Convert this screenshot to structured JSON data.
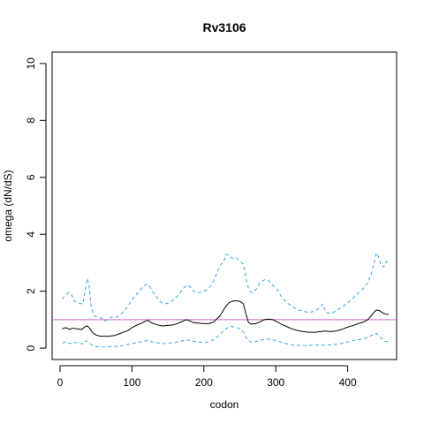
{
  "chart_data": {
    "type": "line",
    "title": "Rv3106",
    "xlabel": "codon",
    "ylabel": "omega (dN/dS)",
    "xlim": [
      -11,
      468
    ],
    "ylim": [
      -0.4,
      10.4
    ],
    "x_ticks": [
      0,
      100,
      200,
      300,
      400
    ],
    "y_ticks": [
      0,
      2,
      4,
      6,
      8,
      10
    ],
    "x_tick_labels": [
      "0",
      "100",
      "200",
      "300",
      "400"
    ],
    "y_tick_labels": [
      "0",
      "2",
      "4",
      "6",
      "8",
      "10"
    ],
    "reference_line": {
      "y": 1,
      "color": "#cc66cc"
    },
    "grid": false,
    "legend": "none",
    "series": [
      {
        "style": "solid",
        "color": "#000000",
        "points": [
          [
            3,
            0.68
          ],
          [
            8,
            0.72
          ],
          [
            13,
            0.66
          ],
          [
            18,
            0.7
          ],
          [
            24,
            0.68
          ],
          [
            30,
            0.65
          ],
          [
            35,
            0.76
          ],
          [
            38,
            0.78
          ],
          [
            41,
            0.7
          ],
          [
            45,
            0.55
          ],
          [
            50,
            0.46
          ],
          [
            56,
            0.42
          ],
          [
            62,
            0.42
          ],
          [
            68,
            0.42
          ],
          [
            75,
            0.44
          ],
          [
            82,
            0.5
          ],
          [
            88,
            0.56
          ],
          [
            95,
            0.62
          ],
          [
            100,
            0.72
          ],
          [
            106,
            0.8
          ],
          [
            112,
            0.86
          ],
          [
            118,
            0.94
          ],
          [
            122,
            0.98
          ],
          [
            128,
            0.88
          ],
          [
            135,
            0.82
          ],
          [
            142,
            0.78
          ],
          [
            150,
            0.8
          ],
          [
            158,
            0.82
          ],
          [
            165,
            0.88
          ],
          [
            170,
            0.94
          ],
          [
            175,
            1.0
          ],
          [
            180,
            0.96
          ],
          [
            185,
            0.9
          ],
          [
            192,
            0.88
          ],
          [
            200,
            0.86
          ],
          [
            207,
            0.86
          ],
          [
            212,
            0.9
          ],
          [
            217,
            1.0
          ],
          [
            222,
            1.12
          ],
          [
            226,
            1.28
          ],
          [
            230,
            1.45
          ],
          [
            235,
            1.6
          ],
          [
            241,
            1.66
          ],
          [
            247,
            1.66
          ],
          [
            252,
            1.62
          ],
          [
            255,
            1.55
          ],
          [
            258,
            1.25
          ],
          [
            262,
            0.9
          ],
          [
            266,
            0.84
          ],
          [
            272,
            0.86
          ],
          [
            278,
            0.92
          ],
          [
            284,
            1.0
          ],
          [
            290,
            1.02
          ],
          [
            296,
            1.0
          ],
          [
            302,
            0.92
          ],
          [
            308,
            0.84
          ],
          [
            315,
            0.76
          ],
          [
            322,
            0.68
          ],
          [
            330,
            0.62
          ],
          [
            338,
            0.58
          ],
          [
            346,
            0.56
          ],
          [
            355,
            0.56
          ],
          [
            362,
            0.58
          ],
          [
            368,
            0.6
          ],
          [
            376,
            0.58
          ],
          [
            384,
            0.6
          ],
          [
            392,
            0.66
          ],
          [
            400,
            0.74
          ],
          [
            408,
            0.8
          ],
          [
            415,
            0.86
          ],
          [
            422,
            0.92
          ],
          [
            428,
            1.0
          ],
          [
            432,
            1.12
          ],
          [
            436,
            1.25
          ],
          [
            440,
            1.34
          ],
          [
            444,
            1.32
          ],
          [
            448,
            1.25
          ],
          [
            452,
            1.2
          ],
          [
            457,
            1.18
          ]
        ]
      },
      {
        "style": "dashed",
        "color": "#3aa8dc",
        "points": [
          [
            3,
            1.72
          ],
          [
            7,
            1.85
          ],
          [
            12,
            1.95
          ],
          [
            16,
            1.88
          ],
          [
            20,
            1.65
          ],
          [
            26,
            1.58
          ],
          [
            32,
            1.55
          ],
          [
            36,
            2.2
          ],
          [
            38,
            2.45
          ],
          [
            40,
            2.3
          ],
          [
            43,
            1.5
          ],
          [
            47,
            1.15
          ],
          [
            52,
            1.08
          ],
          [
            58,
            1.05
          ],
          [
            62,
            0.95
          ],
          [
            66,
            1.0
          ],
          [
            72,
            1.1
          ],
          [
            78,
            1.08
          ],
          [
            85,
            1.2
          ],
          [
            92,
            1.38
          ],
          [
            98,
            1.62
          ],
          [
            104,
            1.82
          ],
          [
            110,
            2.0
          ],
          [
            115,
            2.15
          ],
          [
            120,
            2.25
          ],
          [
            124,
            2.2
          ],
          [
            128,
            2.0
          ],
          [
            134,
            1.8
          ],
          [
            140,
            1.62
          ],
          [
            146,
            1.55
          ],
          [
            152,
            1.6
          ],
          [
            158,
            1.7
          ],
          [
            164,
            1.85
          ],
          [
            170,
            2.05
          ],
          [
            175,
            2.2
          ],
          [
            180,
            2.18
          ],
          [
            186,
            2.0
          ],
          [
            192,
            1.95
          ],
          [
            198,
            1.98
          ],
          [
            204,
            2.05
          ],
          [
            210,
            2.2
          ],
          [
            215,
            2.45
          ],
          [
            220,
            2.75
          ],
          [
            224,
            2.95
          ],
          [
            228,
            3.05
          ],
          [
            231,
            3.3
          ],
          [
            235,
            3.25
          ],
          [
            240,
            3.15
          ],
          [
            245,
            3.18
          ],
          [
            250,
            3.05
          ],
          [
            255,
            2.95
          ],
          [
            258,
            2.5
          ],
          [
            262,
            2.1
          ],
          [
            266,
            1.95
          ],
          [
            272,
            2.05
          ],
          [
            278,
            2.3
          ],
          [
            284,
            2.4
          ],
          [
            290,
            2.38
          ],
          [
            296,
            2.2
          ],
          [
            302,
            2.05
          ],
          [
            308,
            1.8
          ],
          [
            315,
            1.6
          ],
          [
            322,
            1.48
          ],
          [
            330,
            1.35
          ],
          [
            338,
            1.3
          ],
          [
            346,
            1.25
          ],
          [
            354,
            1.3
          ],
          [
            360,
            1.4
          ],
          [
            365,
            1.55
          ],
          [
            370,
            1.25
          ],
          [
            376,
            1.22
          ],
          [
            384,
            1.3
          ],
          [
            392,
            1.45
          ],
          [
            400,
            1.58
          ],
          [
            408,
            1.78
          ],
          [
            415,
            1.95
          ],
          [
            422,
            2.1
          ],
          [
            428,
            2.3
          ],
          [
            432,
            2.55
          ],
          [
            436,
            2.95
          ],
          [
            440,
            3.35
          ],
          [
            443,
            3.2
          ],
          [
            446,
            2.95
          ],
          [
            450,
            2.85
          ],
          [
            454,
            3.05
          ],
          [
            457,
            2.95
          ]
        ]
      },
      {
        "style": "dashed",
        "color": "#3aa8dc",
        "points": [
          [
            3,
            0.18
          ],
          [
            8,
            0.22
          ],
          [
            14,
            0.16
          ],
          [
            20,
            0.2
          ],
          [
            26,
            0.18
          ],
          [
            32,
            0.15
          ],
          [
            36,
            0.26
          ],
          [
            40,
            0.2
          ],
          [
            45,
            0.1
          ],
          [
            52,
            0.05
          ],
          [
            60,
            0.04
          ],
          [
            68,
            0.05
          ],
          [
            76,
            0.06
          ],
          [
            84,
            0.08
          ],
          [
            92,
            0.12
          ],
          [
            100,
            0.16
          ],
          [
            108,
            0.2
          ],
          [
            116,
            0.24
          ],
          [
            122,
            0.28
          ],
          [
            128,
            0.22
          ],
          [
            136,
            0.18
          ],
          [
            144,
            0.16
          ],
          [
            152,
            0.18
          ],
          [
            160,
            0.2
          ],
          [
            168,
            0.24
          ],
          [
            175,
            0.3
          ],
          [
            182,
            0.26
          ],
          [
            190,
            0.22
          ],
          [
            198,
            0.2
          ],
          [
            206,
            0.22
          ],
          [
            214,
            0.3
          ],
          [
            220,
            0.42
          ],
          [
            226,
            0.58
          ],
          [
            232,
            0.7
          ],
          [
            238,
            0.76
          ],
          [
            244,
            0.74
          ],
          [
            250,
            0.68
          ],
          [
            255,
            0.56
          ],
          [
            260,
            0.32
          ],
          [
            266,
            0.2
          ],
          [
            274,
            0.24
          ],
          [
            282,
            0.3
          ],
          [
            290,
            0.32
          ],
          [
            298,
            0.28
          ],
          [
            306,
            0.22
          ],
          [
            314,
            0.16
          ],
          [
            322,
            0.12
          ],
          [
            330,
            0.1
          ],
          [
            340,
            0.09
          ],
          [
            350,
            0.1
          ],
          [
            360,
            0.11
          ],
          [
            370,
            0.1
          ],
          [
            380,
            0.12
          ],
          [
            390,
            0.16
          ],
          [
            400,
            0.22
          ],
          [
            410,
            0.28
          ],
          [
            420,
            0.32
          ],
          [
            428,
            0.38
          ],
          [
            434,
            0.46
          ],
          [
            440,
            0.52
          ],
          [
            446,
            0.36
          ],
          [
            452,
            0.24
          ],
          [
            457,
            0.22
          ]
        ]
      }
    ]
  }
}
